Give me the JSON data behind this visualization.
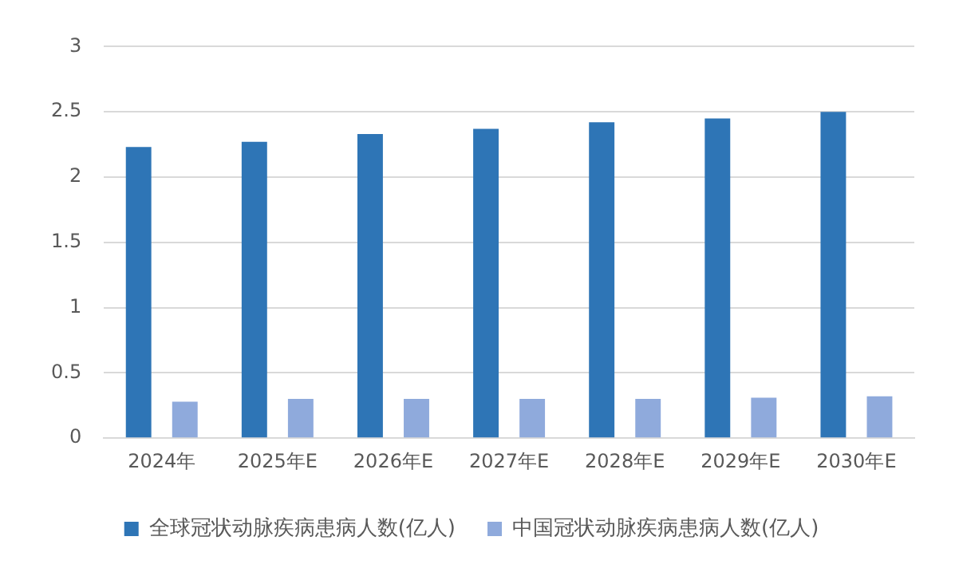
{
  "chart_data": {
    "type": "bar",
    "categories": [
      "2024年",
      "2025年E",
      "2026年E",
      "2027年E",
      "2028年E",
      "2029年E",
      "2030年E"
    ],
    "series": [
      {
        "name": "全球冠状动脉疾病患病人数(亿人)",
        "color": "#2e75b6",
        "values": [
          2.23,
          2.27,
          2.33,
          2.37,
          2.42,
          2.45,
          2.5
        ]
      },
      {
        "name": "中国冠状动脉疾病患病人数(亿人)",
        "color": "#8faadc",
        "values": [
          0.28,
          0.3,
          0.3,
          0.3,
          0.3,
          0.31,
          0.32
        ]
      }
    ],
    "ylim": [
      0,
      3
    ],
    "yticks": [
      0,
      0.5,
      1,
      1.5,
      2,
      2.5,
      3
    ],
    "grid": "y",
    "legend": "bottom"
  }
}
